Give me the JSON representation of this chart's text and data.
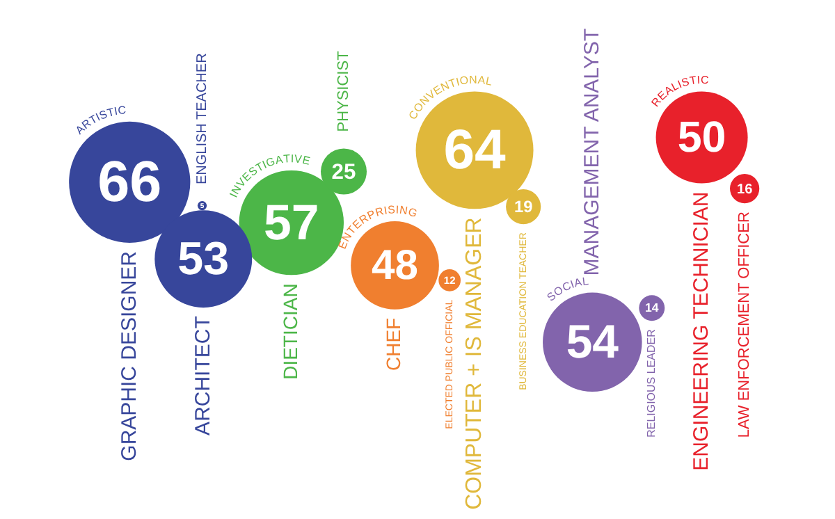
{
  "chart_data": {
    "type": "other",
    "categories": [
      "GRAPHIC DESIGNER",
      "ENGLISH TEACHER",
      "ARCHITECT",
      "DIETICIAN",
      "PHYSICIST",
      "CHEF",
      "ELECTED PUBLIC OFFICIAL",
      "COMPUTER + IS MANAGER",
      "BUSINESS EDUCATION TEACHER",
      "MANAGEMENT ANALYST",
      "RELIGIOUS LEADER",
      "ENGINEERING TECHNICIAN",
      "LAW ENFORCEMENT OFFICER"
    ],
    "series": [
      {
        "name": "ARTISTIC",
        "color": "#37469b",
        "values": [
          66,
          5,
          53,
          null,
          null,
          null,
          null,
          null,
          null,
          null,
          null,
          null,
          null
        ]
      },
      {
        "name": "INVESTIGATIVE",
        "color": "#4cb648",
        "values": [
          null,
          null,
          null,
          57,
          25,
          null,
          null,
          null,
          null,
          null,
          null,
          null,
          null
        ]
      },
      {
        "name": "ENTERPRISING",
        "color": "#f07f2f",
        "values": [
          null,
          null,
          null,
          null,
          null,
          48,
          12,
          null,
          null,
          null,
          null,
          null,
          null
        ]
      },
      {
        "name": "CONVENTIONAL",
        "color": "#e0b83b",
        "values": [
          null,
          null,
          null,
          null,
          null,
          null,
          null,
          64,
          19,
          null,
          null,
          null,
          null
        ]
      },
      {
        "name": "SOCIAL",
        "color": "#8264ac",
        "values": [
          null,
          null,
          null,
          null,
          null,
          null,
          null,
          null,
          null,
          54,
          14,
          null,
          null
        ]
      },
      {
        "name": "REALISTIC",
        "color": "#e8212b",
        "values": [
          null,
          null,
          null,
          null,
          null,
          null,
          null,
          null,
          null,
          null,
          null,
          50,
          16
        ]
      }
    ],
    "data_labels": true,
    "legend": false
  }
}
